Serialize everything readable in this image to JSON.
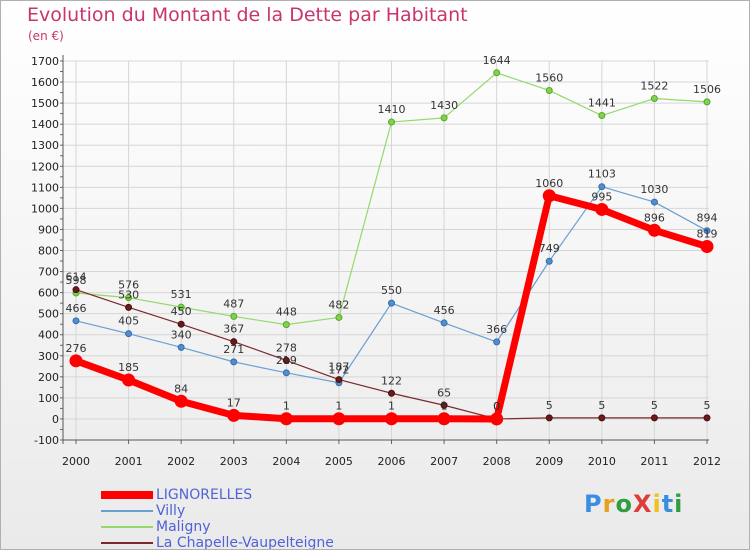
{
  "header": {
    "title": "Evolution du Montant de la Dette par Habitant",
    "unit": "(en €)"
  },
  "logo": {
    "text": "ProXiti"
  },
  "chart_data": {
    "type": "line",
    "title": "Evolution du Montant de la Dette par Habitant",
    "ylabel": "(en €)",
    "xlabel": "",
    "x": [
      "2000",
      "2001",
      "2002",
      "2003",
      "2004",
      "2005",
      "2006",
      "2007",
      "2008",
      "2009",
      "2010",
      "2011",
      "2012"
    ],
    "ylim": [
      -100,
      1700
    ],
    "yticks": [
      -100,
      0,
      100,
      200,
      300,
      400,
      500,
      600,
      700,
      800,
      900,
      1000,
      1100,
      1200,
      1300,
      1400,
      1500,
      1600,
      1700
    ],
    "grid": true,
    "legend_position": "bottom-left",
    "series": [
      {
        "name": "LIGNORELLES",
        "color": "#ff0000",
        "values": [
          276,
          185,
          84,
          17,
          1,
          1,
          1,
          1,
          0,
          1060,
          995,
          896,
          819
        ]
      },
      {
        "name": "Villy",
        "color": "#6b9fd2",
        "values": [
          466,
          405,
          340,
          271,
          219,
          172,
          550,
          456,
          366,
          749,
          1103,
          1030,
          894
        ]
      },
      {
        "name": "Maligny",
        "color": "#94d96a",
        "values": [
          598,
          576,
          531,
          487,
          448,
          482,
          1410,
          1430,
          1644,
          1560,
          1441,
          1522,
          1506
        ]
      },
      {
        "name": "La Chapelle-Vaupelteigne",
        "color": "#7a2a2a",
        "values": [
          614,
          530,
          450,
          367,
          278,
          187,
          122,
          65,
          0,
          5,
          5,
          5,
          5
        ]
      }
    ]
  }
}
